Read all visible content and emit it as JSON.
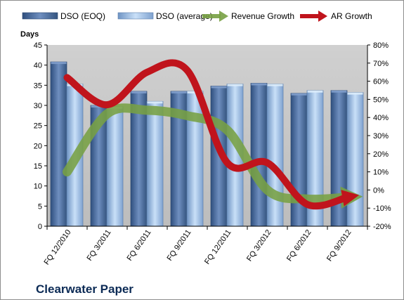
{
  "chart_data": {
    "type": "bar",
    "title": "Clearwater Paper",
    "ylabel": "Days",
    "categories": [
      "FQ 12/2010",
      "FQ 3/2011",
      "FQ 6/2011",
      "FQ 9/2011",
      "FQ 12/2011",
      "FQ 3/2012",
      "FQ 6/2012",
      "FQ 9/2012"
    ],
    "ylim": [
      0,
      45
    ],
    "y_ticks": [
      0,
      5,
      10,
      15,
      20,
      25,
      30,
      35,
      40,
      45
    ],
    "y2lim": [
      -20,
      80
    ],
    "y2_ticks": [
      "-20%",
      "-10%",
      "0%",
      "10%",
      "20%",
      "30%",
      "40%",
      "50%",
      "60%",
      "70%",
      "80%"
    ],
    "y2_values": [
      -20,
      -10,
      0,
      10,
      20,
      30,
      40,
      50,
      60,
      70,
      80
    ],
    "grid": false,
    "legend_position": "top",
    "series": [
      {
        "name": "DSO (EOQ)",
        "kind": "bar",
        "axis": "left",
        "values": [
          40.8,
          30.0,
          33.5,
          33.5,
          34.8,
          35.5,
          33.0,
          33.7
        ],
        "color": "#4f6fa0"
      },
      {
        "name": "DSO (average)",
        "kind": "bar",
        "axis": "left",
        "values": [
          35.3,
          29.7,
          31.0,
          33.5,
          35.3,
          35.3,
          33.7,
          33.2
        ],
        "color": "#a9c8ec"
      },
      {
        "name": "Revenue Growth",
        "kind": "line",
        "axis": "right",
        "values": [
          10,
          42,
          44,
          41,
          33,
          0,
          -5,
          -4
        ],
        "color": "#77a043"
      },
      {
        "name": "AR Growth",
        "kind": "line",
        "axis": "right",
        "values": [
          62,
          47,
          65,
          66,
          15,
          15,
          -8,
          -4
        ],
        "color": "#c0141c"
      }
    ]
  }
}
